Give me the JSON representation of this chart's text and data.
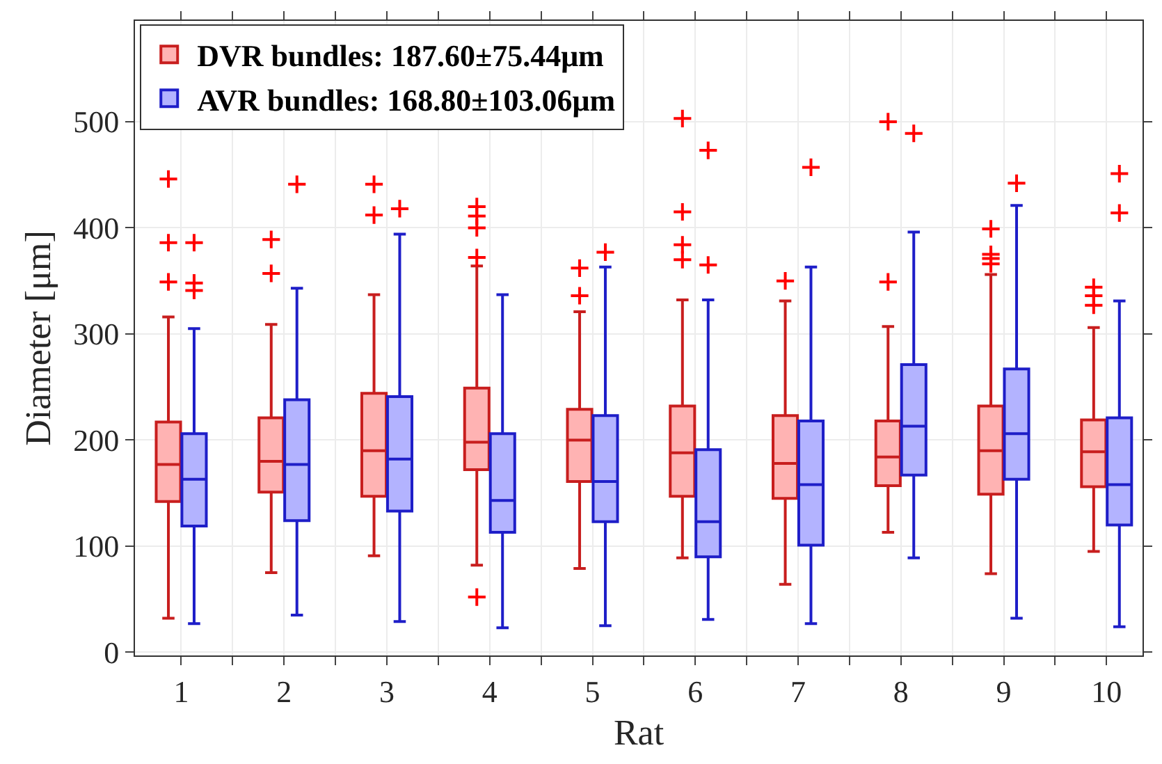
{
  "chart_data": {
    "type": "box",
    "xlabel": "Rat",
    "ylabel": "Diameter [μm]",
    "categories": [
      "1",
      "2",
      "3",
      "4",
      "5",
      "6",
      "7",
      "8",
      "9",
      "10"
    ],
    "ylim": [
      -3,
      595
    ],
    "yticks": [
      0,
      100,
      200,
      300,
      400,
      500
    ],
    "grid": true,
    "legend": "top left",
    "marker": "cross",
    "series": [
      {
        "name": "DVR bundles: 187.60±75.44μm",
        "color": "#ffb3b3",
        "boxes": [
          {
            "low": 32,
            "q1": 142,
            "median": 177,
            "q3": 217,
            "high": 316,
            "outliers": [
              349,
              386,
              446
            ]
          },
          {
            "low": 75,
            "q1": 151,
            "median": 180,
            "q3": 221,
            "high": 309,
            "outliers": [
              357,
              389
            ]
          },
          {
            "low": 91,
            "q1": 147,
            "median": 190,
            "q3": 244,
            "high": 337,
            "outliers": [
              412,
              441
            ]
          },
          {
            "low": 82,
            "q1": 172,
            "median": 198,
            "q3": 249,
            "high": 364,
            "outliers": [
              52,
              372,
              400,
              411,
              420
            ]
          },
          {
            "low": 79,
            "q1": 161,
            "median": 200,
            "q3": 229,
            "high": 321,
            "outliers": [
              336,
              362
            ]
          },
          {
            "low": 89,
            "q1": 147,
            "median": 188,
            "q3": 232,
            "high": 332,
            "outliers": [
              370,
              384,
              415,
              503
            ]
          },
          {
            "low": 64,
            "q1": 145,
            "median": 178,
            "q3": 223,
            "high": 331,
            "outliers": [
              350
            ]
          },
          {
            "low": 113,
            "q1": 157,
            "median": 184,
            "q3": 218,
            "high": 307,
            "outliers": [
              349,
              500
            ]
          },
          {
            "low": 74,
            "q1": 149,
            "median": 190,
            "q3": 232,
            "high": 356,
            "outliers": [
              366,
              371,
              375,
              399
            ]
          },
          {
            "low": 95,
            "q1": 156,
            "median": 189,
            "q3": 219,
            "high": 306,
            "outliers": [
              327,
              336,
              344
            ]
          }
        ]
      },
      {
        "name": "AVR bundles: 168.80±103.06μm",
        "color": "#b3b3ff",
        "boxes": [
          {
            "low": 27,
            "q1": 119,
            "median": 163,
            "q3": 206,
            "high": 305,
            "outliers": [
              341,
              348,
              386
            ]
          },
          {
            "low": 35,
            "q1": 124,
            "median": 177,
            "q3": 238,
            "high": 343,
            "outliers": [
              441
            ]
          },
          {
            "low": 29,
            "q1": 133,
            "median": 182,
            "q3": 241,
            "high": 394,
            "outliers": [
              418
            ]
          },
          {
            "low": 23,
            "q1": 113,
            "median": 143,
            "q3": 206,
            "high": 337
          },
          {
            "low": 25,
            "q1": 123,
            "median": 161,
            "q3": 223,
            "high": 363,
            "outliers": [
              377
            ]
          },
          {
            "low": 31,
            "q1": 90,
            "median": 123,
            "q3": 191,
            "high": 332,
            "outliers": [
              365,
              473
            ]
          },
          {
            "low": 27,
            "q1": 101,
            "median": 158,
            "q3": 218,
            "high": 363,
            "outliers": [
              457
            ]
          },
          {
            "low": 89,
            "q1": 167,
            "median": 213,
            "q3": 271,
            "high": 396,
            "outliers": [
              489
            ]
          },
          {
            "low": 32,
            "q1": 163,
            "median": 206,
            "q3": 267,
            "high": 421,
            "outliers": [
              442
            ]
          },
          {
            "low": 24,
            "q1": 120,
            "median": 158,
            "q3": 221,
            "high": 331,
            "outliers": [
              414,
              451
            ]
          }
        ]
      }
    ]
  }
}
